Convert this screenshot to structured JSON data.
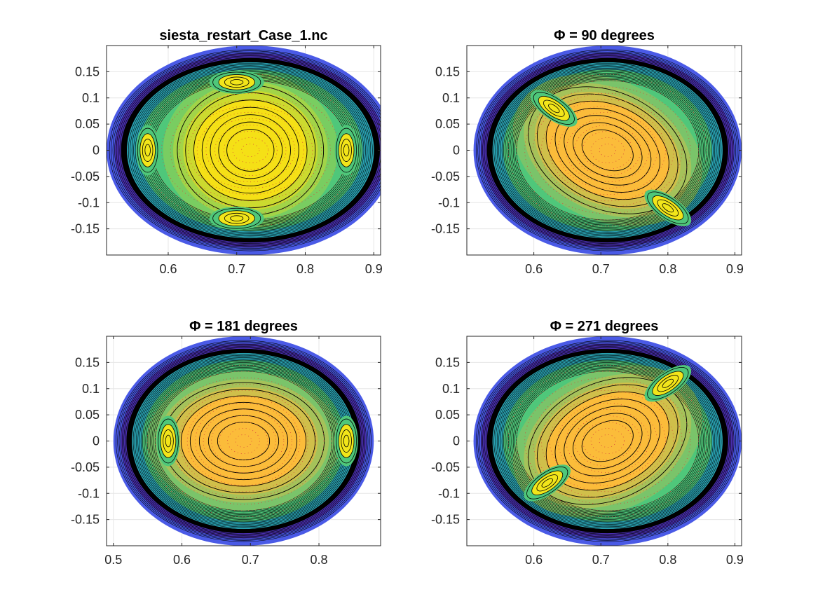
{
  "colors": {
    "outer_blue": "#4a5ae6",
    "deep_purple": "#4a2fb0",
    "teal": "#2aa5b5",
    "green": "#4fc77a",
    "core_yellow_1": "#f5e016",
    "core_yellow_2": "#fbbc3a",
    "contour": "#000000",
    "grid": "#e6e6e6",
    "axes": "#262626"
  },
  "chart_data": [
    {
      "type": "contour",
      "title": "siesta_restart_Case_1.nc",
      "xlim": [
        0.51,
        0.91
      ],
      "ylim": [
        -0.2,
        0.2
      ],
      "xticks": [
        0.6,
        0.7,
        0.8,
        0.9
      ],
      "yticks": [
        0.15,
        0.1,
        0.05,
        0,
        -0.05,
        -0.1,
        -0.15
      ],
      "xtick_labels": [
        "0.6",
        "0.7",
        "0.8",
        "0.9"
      ],
      "ytick_labels": [
        "0.15",
        "0.1",
        "0.05",
        "0",
        "-0.05",
        "-0.1",
        "-0.15"
      ],
      "grid": true,
      "colormap": "parula",
      "boundary_center": [
        0.72,
        0.0
      ],
      "boundary_half_widths": [
        0.21,
        0.2
      ],
      "core_color": "core_yellow_1",
      "core_tilt_deg": 90,
      "islands": [
        [
          0.7,
          0.13
        ],
        [
          0.7,
          -0.13
        ],
        [
          0.57,
          0.0
        ],
        [
          0.86,
          0.0
        ]
      ]
    },
    {
      "type": "contour",
      "title": "Φ = 90 degrees",
      "xlim": [
        0.5,
        0.91
      ],
      "ylim": [
        -0.2,
        0.2
      ],
      "xticks": [
        0.6,
        0.7,
        0.8,
        0.9
      ],
      "yticks": [
        0.15,
        0.1,
        0.05,
        0,
        -0.05,
        -0.1,
        -0.15
      ],
      "xtick_labels": [
        "0.6",
        "0.7",
        "0.8",
        "0.9"
      ],
      "ytick_labels": [
        "0.15",
        "0.1",
        "0.05",
        "0",
        "-0.05",
        "-0.1",
        "-0.15"
      ],
      "grid": true,
      "colormap": "parula",
      "boundary_center": [
        0.71,
        0.0
      ],
      "boundary_half_widths": [
        0.2,
        0.2
      ],
      "core_color": "core_yellow_2",
      "core_tilt_deg": -25,
      "islands": [
        [
          0.63,
          0.08
        ],
        [
          0.8,
          -0.11
        ]
      ]
    },
    {
      "type": "contour",
      "title": "Φ = 181 degrees",
      "xlim": [
        0.49,
        0.89
      ],
      "ylim": [
        -0.2,
        0.2
      ],
      "xticks": [
        0.5,
        0.6,
        0.7,
        0.8
      ],
      "yticks": [
        0.15,
        0.1,
        0.05,
        0,
        -0.05,
        -0.1,
        -0.15
      ],
      "xtick_labels": [
        "0.5",
        "0.6",
        "0.7",
        "0.8"
      ],
      "ytick_labels": [
        "0.15",
        "0.1",
        "0.05",
        "0",
        "-0.05",
        "-0.1",
        "-0.15"
      ],
      "grid": true,
      "colormap": "parula",
      "boundary_center": [
        0.69,
        0.0
      ],
      "boundary_half_widths": [
        0.19,
        0.2
      ],
      "core_color": "core_yellow_2",
      "core_tilt_deg": 0,
      "islands": [
        [
          0.58,
          0.0
        ],
        [
          0.84,
          0.0
        ]
      ]
    },
    {
      "type": "contour",
      "title": "Φ = 271 degrees",
      "xlim": [
        0.5,
        0.91
      ],
      "ylim": [
        -0.2,
        0.2
      ],
      "xticks": [
        0.6,
        0.7,
        0.8,
        0.9
      ],
      "yticks": [
        0.15,
        0.1,
        0.05,
        0,
        -0.05,
        -0.1,
        -0.15
      ],
      "xtick_labels": [
        "0.6",
        "0.7",
        "0.8",
        "0.9"
      ],
      "ytick_labels": [
        "0.15",
        "0.1",
        "0.05",
        "0",
        "-0.05",
        "-0.1",
        "-0.15"
      ],
      "grid": true,
      "colormap": "parula",
      "boundary_center": [
        0.71,
        0.0
      ],
      "boundary_half_widths": [
        0.2,
        0.2
      ],
      "core_color": "core_yellow_2",
      "core_tilt_deg": 25,
      "islands": [
        [
          0.8,
          0.11
        ],
        [
          0.62,
          -0.08
        ]
      ]
    }
  ]
}
